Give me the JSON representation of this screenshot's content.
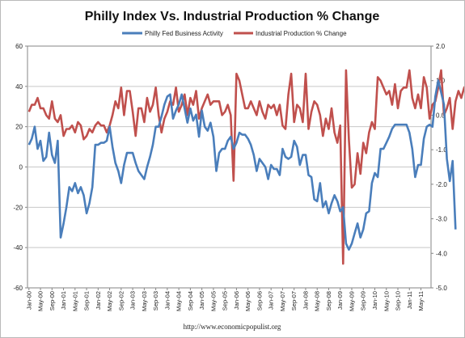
{
  "chart_data": {
    "type": "line",
    "title": "Philly Index Vs.  Industrial Production % Change",
    "footer": "http://www.economicpopulist.org",
    "legend_position": "top-center",
    "grid": true,
    "x_tick_labels": [
      "Jan-00",
      "May-00",
      "Sep-00",
      "Jan-01",
      "May-01",
      "Sep-01",
      "Jan-02",
      "May-02",
      "Sep-02",
      "Jan-03",
      "May-03",
      "Sep-03",
      "Jan-04",
      "May-04",
      "Sep-04",
      "Jan-05",
      "May-05",
      "Sep-05",
      "Jan-06",
      "May-06",
      "Sep-06",
      "Jan-07",
      "May-07",
      "Sep-07",
      "Jan-08",
      "May-08",
      "Sep-08",
      "Jan-09",
      "May-09",
      "Sep-09",
      "Jan-10",
      "May-10",
      "Sep-10",
      "Jan-11",
      "May-11"
    ],
    "y_left": {
      "min": -60,
      "max": 60,
      "step": 20,
      "ticks": [
        "60",
        "40",
        "20",
        "0",
        "-20",
        "-40",
        "-60"
      ]
    },
    "y_right": {
      "min": -5.0,
      "max": 2.0,
      "step": 1.0,
      "ticks": [
        "2.0",
        "1.0",
        "0.0",
        "-1.0",
        "-2.0",
        "-3.0",
        "-4.0",
        "-5.0"
      ]
    },
    "series": [
      {
        "name": "Philly Fed Business Activity",
        "axis": "left",
        "color": "#4a7ebb",
        "start": "Jan-00",
        "values": [
          11,
          14,
          20,
          9,
          13,
          3,
          5,
          17,
          6,
          2,
          13,
          -35,
          -28,
          -20,
          -10,
          -12,
          -8,
          -13,
          -10,
          -14,
          -23,
          -18,
          -10,
          11,
          11,
          12,
          12,
          13,
          20,
          10,
          2,
          -2,
          -8,
          1,
          7,
          7,
          7,
          2,
          -2,
          -4,
          -6,
          0,
          5,
          11,
          20,
          20,
          25,
          31,
          35,
          36,
          24,
          28,
          31,
          36,
          29,
          22,
          29,
          23,
          26,
          15,
          28,
          20,
          18,
          22,
          15,
          -2,
          7,
          9,
          9,
          13,
          15,
          9,
          12,
          17,
          16,
          16,
          14,
          11,
          6,
          -2,
          4,
          2,
          0,
          -6,
          1,
          -1,
          -1,
          -4,
          9,
          5,
          4,
          5,
          13,
          10,
          1,
          6,
          6,
          -4,
          -5,
          -16,
          -17,
          -8,
          -20,
          -17,
          -23,
          -18,
          -14,
          -17,
          -22,
          -20,
          -38,
          -41,
          -38,
          -33,
          -28,
          -35,
          -31,
          -23,
          -22,
          -8,
          -3,
          -5,
          9,
          9,
          12,
          15,
          19,
          21,
          21,
          21,
          21,
          21,
          17,
          9,
          -5,
          1,
          1,
          14,
          20,
          21,
          20,
          35,
          43,
          37,
          31,
          4,
          -7,
          3,
          -31
        ]
      },
      {
        "name": "Industrial Production % Change",
        "axis": "right",
        "color": "#c0504d",
        "start": "Jan-00",
        "values": [
          0.1,
          0.3,
          0.3,
          0.5,
          0.2,
          0.2,
          0.0,
          -0.1,
          0.4,
          -0.1,
          -0.2,
          0.0,
          -0.6,
          -0.4,
          -0.4,
          -0.3,
          -0.5,
          -0.2,
          -0.3,
          -0.7,
          -0.6,
          -0.4,
          -0.5,
          -0.3,
          -0.2,
          -0.3,
          -0.3,
          -0.5,
          -0.3,
          0.0,
          0.4,
          0.2,
          0.8,
          0.0,
          0.7,
          0.7,
          0.1,
          -0.6,
          0.2,
          0.2,
          -0.2,
          0.5,
          0.1,
          0.3,
          0.8,
          0.0,
          -0.5,
          -0.1,
          0.1,
          0.4,
          0.3,
          0.8,
          0.1,
          0.3,
          0.6,
          0.0,
          0.5,
          0.3,
          0.7,
          -0.1,
          0.2,
          0.4,
          0.6,
          0.3,
          0.4,
          0.4,
          0.4,
          0.0,
          0.1,
          0.3,
          0.0,
          -1.9,
          1.2,
          1.0,
          0.6,
          0.2,
          0.2,
          0.4,
          0.2,
          0.0,
          0.4,
          0.1,
          -0.1,
          0.3,
          0.2,
          0.3,
          0.0,
          0.3,
          -0.3,
          -0.4,
          0.6,
          1.2,
          -0.2,
          0.3,
          0.2,
          -0.2,
          1.2,
          -0.4,
          0.1,
          0.4,
          0.3,
          0.0,
          -0.6,
          -0.1,
          -0.4,
          0.2,
          -0.5,
          -0.8,
          -0.3,
          -4.3,
          1.3,
          -0.7,
          -2.1,
          -2.0,
          -1.1,
          -1.7,
          -0.8,
          -1.1,
          -0.5,
          -0.2,
          -0.4,
          1.1,
          1.0,
          0.8,
          0.6,
          0.7,
          0.3,
          0.9,
          0.2,
          0.7,
          0.8,
          0.8,
          1.3,
          0.5,
          0.2,
          0.6,
          0.2,
          1.1,
          0.8,
          -0.1,
          0.3,
          0.4,
          0.8,
          1.3,
          0.0,
          0.2,
          0.5,
          -0.4,
          0.4,
          0.7,
          0.5,
          0.8,
          0.9
        ]
      }
    ]
  }
}
